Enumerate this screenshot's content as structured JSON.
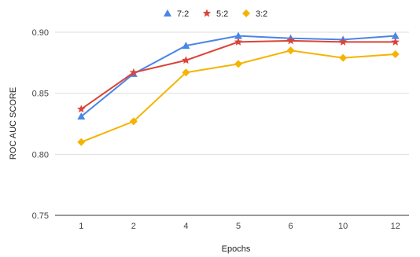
{
  "chart_data": {
    "type": "line",
    "categories": [
      "1",
      "2",
      "4",
      "5",
      "6",
      "10",
      "12"
    ],
    "xlabel": "Epochs",
    "ylabel": "ROC AUC SCORE",
    "ylim": [
      0.75,
      0.9
    ],
    "yticks": [
      "0.75",
      "0.80",
      "0.85",
      "0.90"
    ],
    "grid": true,
    "legend_position": "top-center",
    "series": [
      {
        "name": "7:2",
        "color": "#4a86e8",
        "marker": "triangle",
        "values": [
          0.831,
          0.866,
          0.889,
          0.897,
          0.895,
          0.894,
          0.897
        ]
      },
      {
        "name": "5:2",
        "color": "#db4437",
        "marker": "star",
        "values": [
          0.837,
          0.867,
          0.877,
          0.892,
          0.893,
          0.892,
          0.892
        ]
      },
      {
        "name": "3:2",
        "color": "#f4b400",
        "marker": "diamond",
        "values": [
          0.81,
          0.827,
          0.867,
          0.874,
          0.885,
          0.879,
          0.882
        ]
      }
    ]
  }
}
